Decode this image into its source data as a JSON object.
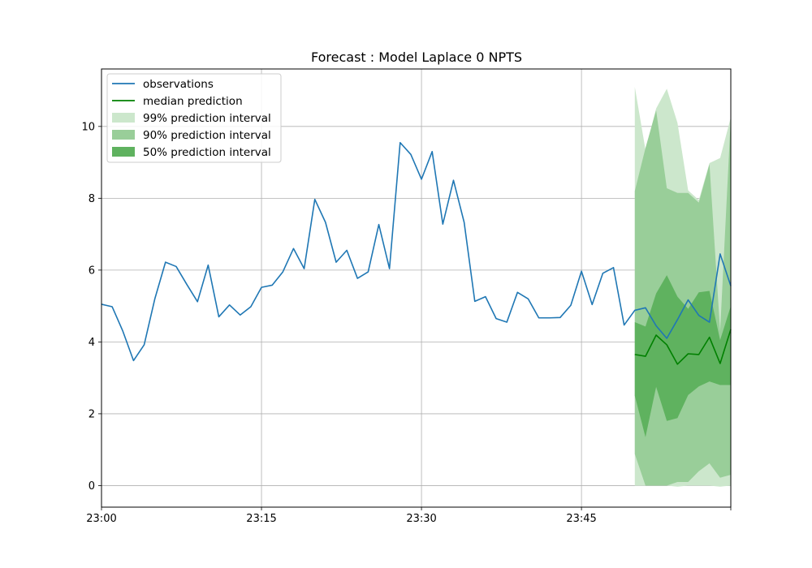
{
  "chart_data": {
    "type": "line",
    "title": "Forecast : Model Laplace 0 NPTS",
    "xlabel": "",
    "ylabel": "",
    "x_ticks": [
      "23:00",
      "23:15",
      "23:30",
      "23:45"
    ],
    "x_range_minutes": [
      0,
      59
    ],
    "y_ticks": [
      "0",
      "2",
      "4",
      "6",
      "8",
      "10"
    ],
    "ylim": [
      -0.6,
      11.6
    ],
    "grid": true,
    "legend_position": "top-left",
    "legend": [
      {
        "label": "observations",
        "kind": "line",
        "color": "#1f77b4"
      },
      {
        "label": "median prediction",
        "kind": "line",
        "color": "#008000"
      },
      {
        "label": "99% prediction interval",
        "kind": "patch",
        "color": "#cce7cc"
      },
      {
        "label": "90% prediction interval",
        "kind": "patch",
        "color": "#99ce99"
      },
      {
        "label": "50% prediction interval",
        "kind": "patch",
        "color": "#5fb25f"
      }
    ],
    "observations": {
      "x": [
        0,
        1,
        2,
        3,
        4,
        5,
        6,
        7,
        8,
        9,
        10,
        11,
        12,
        13,
        14,
        15,
        16,
        17,
        18,
        19,
        20,
        21,
        22,
        23,
        24,
        25,
        26,
        27,
        28,
        29,
        30,
        31,
        32,
        33,
        34,
        35,
        36,
        37,
        38,
        39,
        40,
        41,
        42,
        43,
        44,
        45,
        46,
        47,
        48,
        49,
        50,
        51,
        52,
        53,
        54,
        55,
        56,
        57,
        58,
        59
      ],
      "y": [
        5.05,
        4.98,
        4.3,
        3.48,
        3.92,
        5.2,
        6.22,
        6.1,
        5.6,
        5.12,
        6.14,
        4.7,
        5.03,
        4.75,
        4.98,
        5.52,
        5.58,
        5.95,
        6.6,
        6.04,
        7.97,
        7.33,
        6.22,
        6.55,
        5.77,
        5.95,
        7.27,
        6.04,
        9.55,
        9.22,
        8.53,
        9.3,
        7.28,
        8.5,
        7.33,
        5.13,
        5.26,
        4.65,
        4.55,
        5.38,
        5.2,
        4.67,
        4.67,
        4.68,
        5.02,
        5.97,
        5.04,
        5.91,
        6.07,
        4.47,
        4.88,
        4.95,
        4.45,
        4.1,
        4.62,
        5.17,
        4.74,
        4.55,
        6.45,
        5.56
      ]
    },
    "forecast": {
      "x": [
        50,
        51,
        52,
        53,
        54,
        55,
        56,
        57,
        58,
        59
      ],
      "median": [
        3.65,
        3.6,
        4.19,
        3.92,
        3.38,
        3.67,
        3.65,
        4.13,
        3.4,
        4.35
      ],
      "p50_lower": [
        2.5,
        1.35,
        2.75,
        1.8,
        1.88,
        2.52,
        2.76,
        2.9,
        2.8,
        2.8
      ],
      "p50_upper": [
        4.55,
        4.43,
        5.35,
        5.86,
        5.26,
        4.92,
        5.38,
        5.42,
        4.05,
        5.0
      ],
      "p90_lower": [
        0.88,
        0.0,
        0.0,
        0.0,
        0.1,
        0.1,
        0.4,
        0.62,
        0.22,
        0.3
      ],
      "p90_upper": [
        8.2,
        9.4,
        10.45,
        8.28,
        8.15,
        8.15,
        7.88,
        8.95,
        4.3,
        10.25
      ],
      "p99_lower": [
        0.0,
        0.0,
        0.0,
        0.0,
        -0.03,
        0.0,
        0.0,
        0.0,
        -0.03,
        0.0
      ],
      "p99_upper": [
        11.1,
        9.35,
        10.5,
        11.05,
        10.1,
        8.22,
        7.95,
        8.98,
        9.12,
        10.25
      ]
    }
  }
}
